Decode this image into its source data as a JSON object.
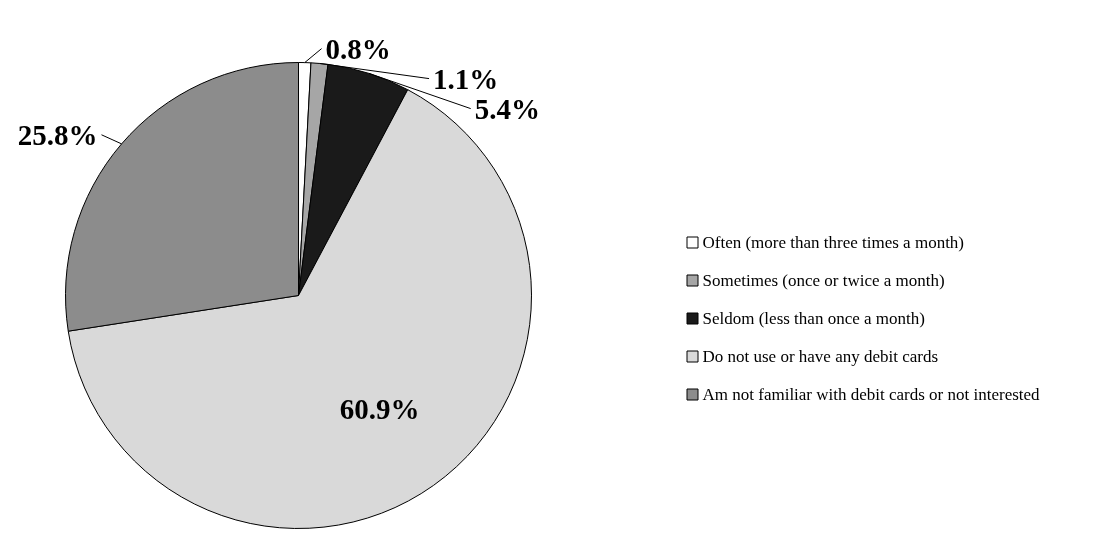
{
  "chart_data": {
    "type": "pie",
    "categories": [
      "Often (more than three times a month)",
      "Sometimes (once or twice a month)",
      "Seldom (less than once a month)",
      "Do not use or have any debit cards",
      "Am not familiar with debit cards or not interested"
    ],
    "values": [
      0.8,
      1.1,
      5.4,
      60.9,
      25.8
    ],
    "colors": [
      "#ffffff",
      "#a6a6a6",
      "#1a1a1a",
      "#d9d9d9",
      "#8c8c8c"
    ],
    "value_labels": [
      "0.8%",
      "1.1%",
      "5.4%",
      "60.9%",
      "25.8%"
    ],
    "legend": "right"
  }
}
